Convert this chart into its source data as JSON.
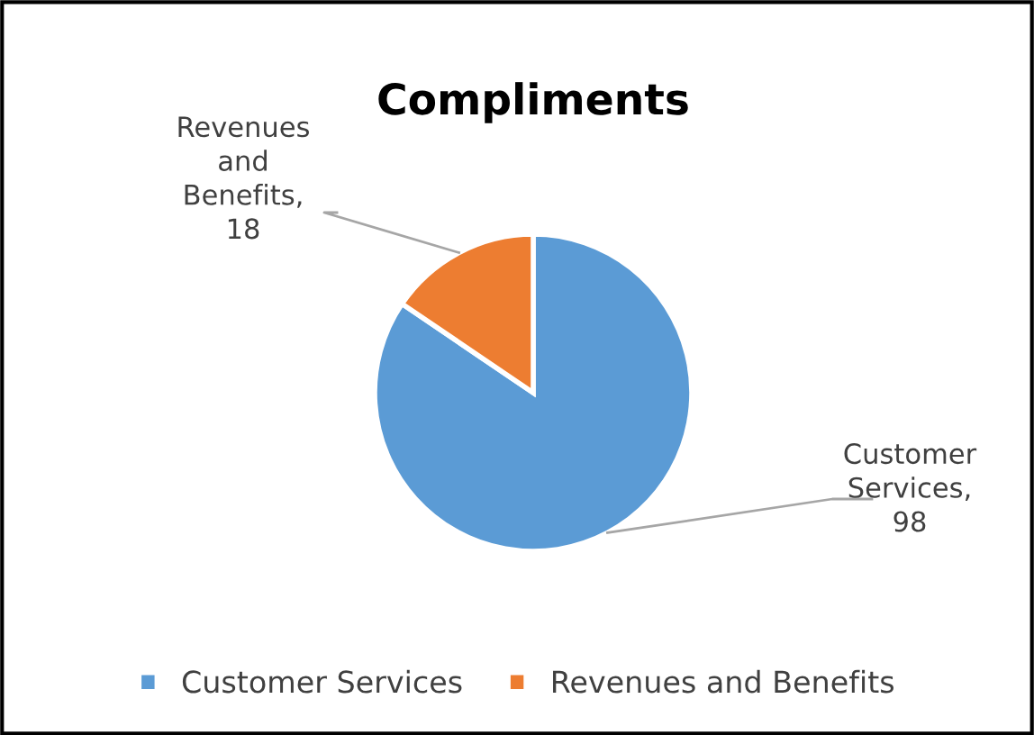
{
  "chart_data": {
    "type": "pie",
    "title": "Compliments",
    "categories": [
      "Customer Services",
      "Revenues and Benefits"
    ],
    "values": [
      98,
      18
    ],
    "colors": [
      "#5b9bd5",
      "#ed7d31"
    ],
    "value_labels": [
      "Customer Services, 98",
      "Revenues and Benefits, 18"
    ],
    "legend": "bottom"
  }
}
